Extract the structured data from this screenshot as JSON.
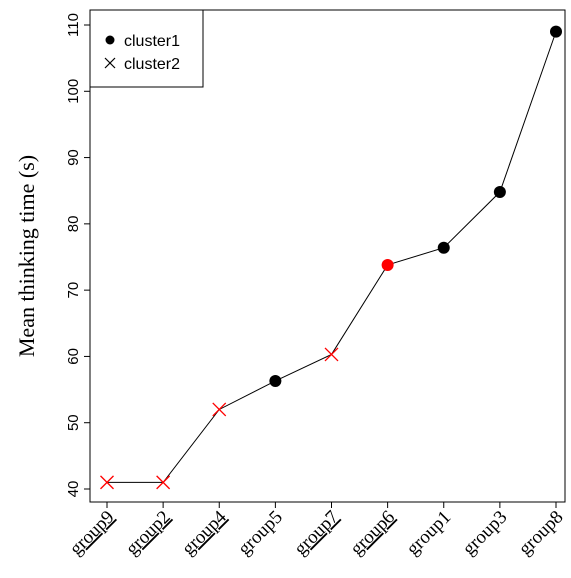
{
  "chart_data": {
    "type": "scatter",
    "ylabel": "Mean thinking time (s)",
    "xlabel": "",
    "ylim": [
      39,
      112
    ],
    "yticks": [
      40,
      50,
      60,
      70,
      80,
      90,
      100,
      110
    ],
    "ytick_labels": [
      "40",
      "50",
      "60",
      "70",
      "80",
      "90",
      "100",
      "110"
    ],
    "categories": [
      "group9",
      "group2",
      "group4",
      "group5",
      "group7",
      "group6",
      "group1",
      "group3",
      "group8"
    ],
    "underlined_categories": [
      "group9",
      "group2",
      "group4",
      "group7",
      "group6"
    ],
    "values": [
      41.0,
      41.0,
      52.0,
      56.3,
      60.3,
      73.8,
      76.4,
      84.8,
      109.0
    ],
    "clusters": [
      "cluster2",
      "cluster2",
      "cluster2",
      "cluster1",
      "cluster2",
      "cluster1",
      "cluster1",
      "cluster1",
      "cluster1"
    ],
    "highlighted": [
      "group6"
    ],
    "legend": {
      "position": "top-left",
      "entries": [
        {
          "name": "cluster1",
          "marker": "dot"
        },
        {
          "name": "cluster2",
          "marker": "x"
        }
      ]
    },
    "colors": {
      "cluster1": "#000000",
      "cluster2": "#ff0000",
      "highlight": "#ff0000",
      "line": "#000000"
    },
    "grid": false
  }
}
